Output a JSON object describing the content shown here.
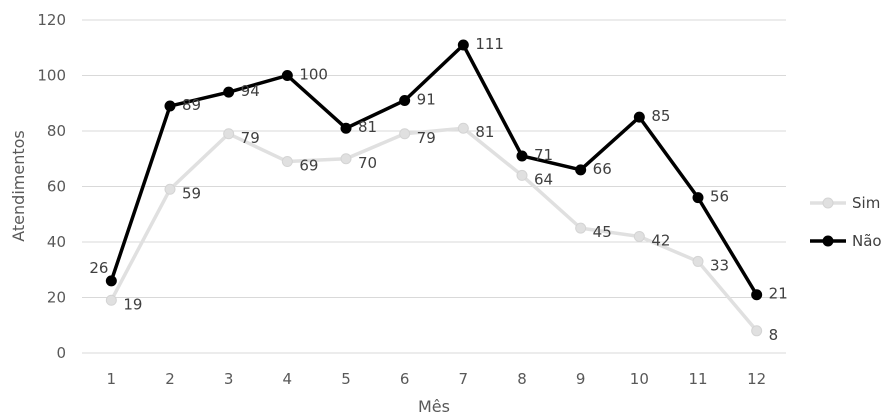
{
  "chart_data": {
    "type": "line",
    "title": "",
    "xlabel": "Mês",
    "ylabel": "Atendimentos",
    "x": [
      1,
      2,
      3,
      4,
      5,
      6,
      7,
      8,
      9,
      10,
      11,
      12
    ],
    "ylim": [
      0,
      120
    ],
    "yticks": [
      0,
      20,
      40,
      60,
      80,
      100,
      120
    ],
    "grid": true,
    "legend_position": "right",
    "series": [
      {
        "name": "Sim",
        "color": "#e0e0e0",
        "values": [
          19,
          59,
          79,
          69,
          70,
          79,
          81,
          64,
          45,
          42,
          33,
          8
        ]
      },
      {
        "name": "Não",
        "color": "#000000",
        "values": [
          26,
          89,
          94,
          100,
          81,
          91,
          111,
          71,
          66,
          85,
          56,
          21
        ]
      }
    ]
  }
}
